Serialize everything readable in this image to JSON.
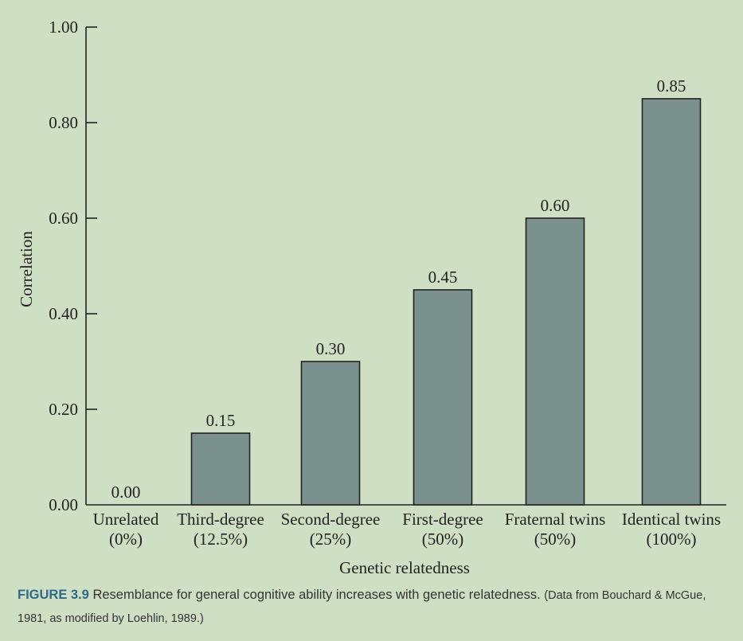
{
  "chart_data": {
    "type": "bar",
    "categories": [
      {
        "name": "Unrelated",
        "pct": "(0%)"
      },
      {
        "name": "Third-degree",
        "pct": "(12.5%)"
      },
      {
        "name": "Second-degree",
        "pct": "(25%)"
      },
      {
        "name": "First-degree",
        "pct": "(50%)"
      },
      {
        "name": "Fraternal twins",
        "pct": "(50%)"
      },
      {
        "name": "Identical twins",
        "pct": "(100%)"
      }
    ],
    "values": [
      0.0,
      0.15,
      0.3,
      0.45,
      0.6,
      0.85
    ],
    "value_labels": [
      "0.00",
      "0.15",
      "0.30",
      "0.45",
      "0.60",
      "0.85"
    ],
    "ylim": [
      0,
      1.0
    ],
    "yticks": [
      "0.00",
      "0.20",
      "0.40",
      "0.60",
      "0.80",
      "1.00"
    ],
    "ytick_values": [
      0,
      0.2,
      0.4,
      0.6,
      0.8,
      1.0
    ],
    "xlabel": "Genetic relatedness",
    "ylabel": "Correlation",
    "bar_color": "#7a918d"
  },
  "caption": {
    "figure_number": "FIGURE 3.9",
    "text": "Resemblance for general cognitive ability increases with genetic relatedness.",
    "source": "(Data from Bouchard & McGue, 1981, as modified by Loehlin, 1989.)"
  }
}
